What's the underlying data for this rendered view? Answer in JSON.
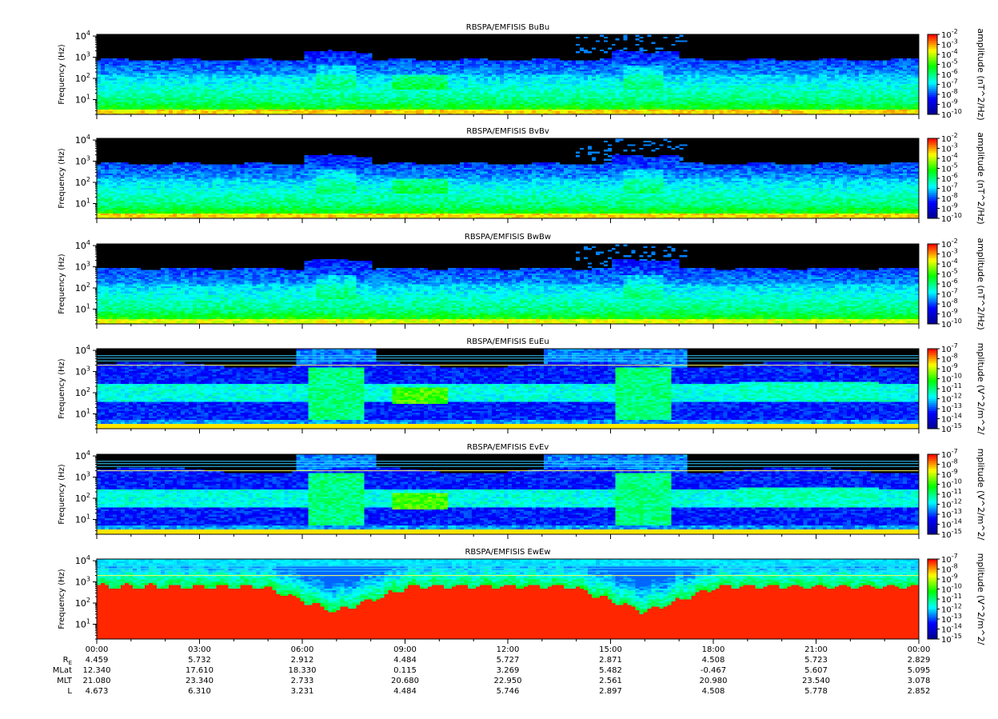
{
  "panels": [
    {
      "title": "RBSPA/EMFISIS  BuBu",
      "cbar_label": "amplitude (nT^2/Hz)",
      "cbar_exps": [
        "-2",
        "-3",
        "-4",
        "-5",
        "-6",
        "-7",
        "-8",
        "-9",
        "-10"
      ],
      "kind": "B",
      "lines": false
    },
    {
      "title": "RBSPA/EMFISIS  BvBv",
      "cbar_label": "amplitude (nT^2/Hz)",
      "cbar_exps": [
        "-2",
        "-3",
        "-4",
        "-5",
        "-6",
        "-7",
        "-8",
        "-9",
        "-10"
      ],
      "kind": "B",
      "lines": false
    },
    {
      "title": "RBSPA/EMFISIS  BwBw",
      "cbar_label": "amplitude (nT^2/Hz)",
      "cbar_exps": [
        "-2",
        "-3",
        "-4",
        "-5",
        "-6",
        "-7",
        "-8",
        "-9",
        "-10"
      ],
      "kind": "Bw",
      "lines": false
    },
    {
      "title": "RBSPA/EMFISIS  EuEu",
      "cbar_label": "mplitude (V^2/m^2/",
      "cbar_exps": [
        "-7",
        "-8",
        "-9",
        "-10",
        "-11",
        "-12",
        "-13",
        "-14",
        "-15"
      ],
      "kind": "E",
      "lines": true
    },
    {
      "title": "RBSPA/EMFISIS  EvEv",
      "cbar_label": "mplitude (V^2/m^2/",
      "cbar_exps": [
        "-7",
        "-8",
        "-9",
        "-10",
        "-11",
        "-12",
        "-13",
        "-14",
        "-15"
      ],
      "kind": "E",
      "lines": true
    },
    {
      "title": "RBSPA/EMFISIS  EwEw",
      "cbar_label": "mplitude (V^2/m^2/",
      "cbar_exps": [
        "-7",
        "-8",
        "-9",
        "-10",
        "-11",
        "-12",
        "-13",
        "-14",
        "-15"
      ],
      "kind": "Ew",
      "lines": true
    }
  ],
  "ylabel": "Frequency (Hz)",
  "yticks": [
    {
      "base": "10",
      "exp": "1"
    },
    {
      "base": "10",
      "exp": "2"
    },
    {
      "base": "10",
      "exp": "3"
    },
    {
      "base": "10",
      "exp": "4"
    }
  ],
  "cbar_base": "10",
  "colors": {
    "background": "#000000",
    "cmap": [
      "#00008b",
      "#0000ff",
      "#00ffff",
      "#00ff00",
      "#ffff00",
      "#ff0000"
    ]
  },
  "ephemeris": {
    "row_labels": [
      {
        "text": "R",
        "sub": "E"
      },
      {
        "text": "MLat",
        "sub": ""
      },
      {
        "text": "MLT",
        "sub": ""
      },
      {
        "text": "L",
        "sub": ""
      }
    ],
    "columns": [
      {
        "time": "00:00",
        "R": "4.459",
        "MLat": "12.340",
        "MLT": "21.080",
        "L": "4.673"
      },
      {
        "time": "03:00",
        "R": "5.732",
        "MLat": "17.610",
        "MLT": "23.340",
        "L": "6.310"
      },
      {
        "time": "06:00",
        "R": "2.912",
        "MLat": "18.330",
        "MLT": "2.733",
        "L": "3.231"
      },
      {
        "time": "09:00",
        "R": "4.484",
        "MLat": "0.115",
        "MLT": "20.680",
        "L": "4.484"
      },
      {
        "time": "12:00",
        "R": "5.727",
        "MLat": "3.269",
        "MLT": "22.950",
        "L": "5.746"
      },
      {
        "time": "15:00",
        "R": "2.871",
        "MLat": "5.482",
        "MLT": "2.561",
        "L": "2.897"
      },
      {
        "time": "18:00",
        "R": "4.508",
        "MLat": "-0.467",
        "MLT": "20.980",
        "L": "4.508"
      },
      {
        "time": "21:00",
        "R": "5.723",
        "MLat": "5.607",
        "MLT": "23.540",
        "L": "5.778"
      },
      {
        "time": "00:00",
        "R": "2.829",
        "MLat": "5.095",
        "MLT": "3.078",
        "L": "2.852"
      }
    ]
  },
  "chart_data": {
    "type": "heatmap",
    "x_range_hours": [
      0,
      24
    ],
    "y_range_hz": [
      2,
      12000
    ],
    "y_scale": "log",
    "x_tick_labels": [
      "00:00",
      "03:00",
      "06:00",
      "09:00",
      "12:00",
      "15:00",
      "18:00",
      "21:00",
      "00:00"
    ],
    "panels": [
      "BuBu",
      "BvBv",
      "BwBw",
      "EuEu",
      "EvEv",
      "EwEw"
    ],
    "perigee_hours": [
      7.0,
      16.0
    ],
    "hiss_band_hz": [
      30,
      300
    ],
    "B_colorbar_range": [
      "1e-10",
      "1e-2"
    ],
    "E_colorbar_range": [
      "1e-15",
      "1e-7"
    ]
  }
}
